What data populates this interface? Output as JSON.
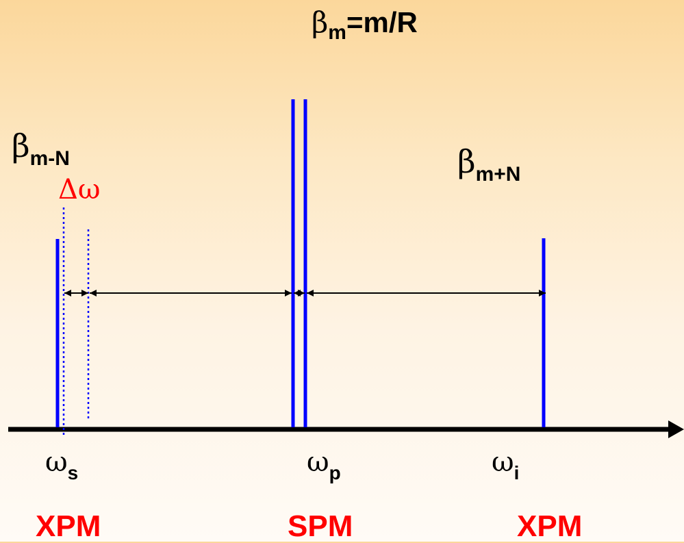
{
  "colors": {
    "line_blue": "#0000ff",
    "axis": "#000000",
    "arrow": "#000000",
    "label_red": "#ff0000",
    "background_top": "#fbd79b",
    "background_bottom": "#fffbf6"
  },
  "labels": {
    "beta_center": {
      "symbol": "β",
      "sub": "m",
      "rest": "=m/R"
    },
    "beta_left": {
      "symbol": "β",
      "sub": "m-N"
    },
    "beta_right": {
      "symbol": "β",
      "sub": "m+N"
    },
    "delta_omega": "Δω",
    "omega_s": {
      "symbol": "ω",
      "sub": "s"
    },
    "omega_p": {
      "symbol": "ω",
      "sub": "p"
    },
    "omega_i": {
      "symbol": "ω",
      "sub": "i"
    },
    "xpm_left": "XPM",
    "spm": "SPM",
    "xpm_right": "XPM"
  }
}
